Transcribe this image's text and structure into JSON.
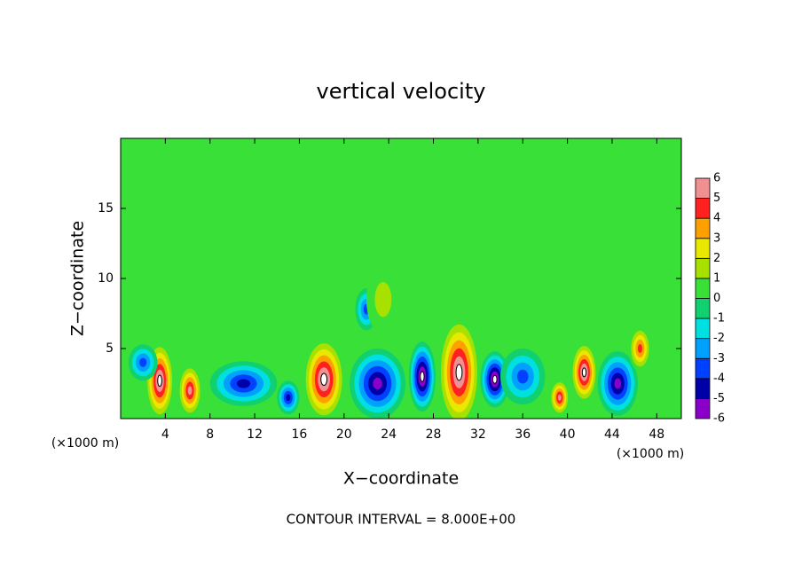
{
  "chart_data": {
    "type": "contour",
    "title": "vertical velocity",
    "x_label": "X−coordinate",
    "y_label": "Z−coordinate",
    "x_unit": "(×1000 m)",
    "footer": "CONTOUR INTERVAL = 8.000E+00",
    "xlim": [
      0,
      50.2
    ],
    "ylim": [
      0,
      20
    ],
    "xticks": [
      4,
      8,
      12,
      16,
      20,
      24,
      28,
      32,
      36,
      40,
      44,
      48
    ],
    "yticks": [
      5,
      10,
      15
    ],
    "colorbar": {
      "levels": [
        -6,
        -5,
        -4,
        -3,
        -2,
        -1,
        0,
        1,
        2,
        3,
        4,
        5,
        6
      ],
      "colors": [
        "#8a00c8",
        "#0000a8",
        "#0040ff",
        "#00a0ff",
        "#00e0e0",
        "#10d070",
        "#38e038",
        "#a8e000",
        "#e8e800",
        "#ffa000",
        "#ff2020",
        "#f09090"
      ]
    },
    "background_value": 0.5,
    "field": [
      {
        "x": 3.5,
        "z": 2.7,
        "rx": 1.3,
        "rz": 2.8,
        "value": 6
      },
      {
        "x": 6.2,
        "z": 2.0,
        "rx": 1.1,
        "rz": 1.9,
        "value": 5
      },
      {
        "x": 2.0,
        "z": 4.0,
        "rx": 1.3,
        "rz": 1.3,
        "value": -3
      },
      {
        "x": 11.0,
        "z": 2.5,
        "rx": 3.0,
        "rz": 1.6,
        "value": -4
      },
      {
        "x": 15.0,
        "z": 1.5,
        "rx": 1.0,
        "rz": 1.2,
        "value": -4
      },
      {
        "x": 18.2,
        "z": 2.8,
        "rx": 1.9,
        "rz": 3.0,
        "value": 6
      },
      {
        "x": 23.0,
        "z": 2.5,
        "rx": 2.5,
        "rz": 2.5,
        "value": -5
      },
      {
        "x": 22.0,
        "z": 7.8,
        "rx": 1.0,
        "rz": 1.5,
        "value": -3
      },
      {
        "x": 23.5,
        "z": 8.5,
        "rx": 1.5,
        "rz": 2.5,
        "value": 1
      },
      {
        "x": 27.0,
        "z": 3.0,
        "rx": 1.2,
        "rz": 2.5,
        "value": -6
      },
      {
        "x": 30.3,
        "z": 3.3,
        "rx": 1.9,
        "rz": 4.0,
        "value": 6
      },
      {
        "x": 33.5,
        "z": 2.8,
        "rx": 1.3,
        "rz": 2.0,
        "value": -6
      },
      {
        "x": 36.0,
        "z": 3.0,
        "rx": 2.0,
        "rz": 2.0,
        "value": -3
      },
      {
        "x": 39.3,
        "z": 1.5,
        "rx": 0.9,
        "rz": 1.3,
        "value": 5
      },
      {
        "x": 41.5,
        "z": 3.3,
        "rx": 1.2,
        "rz": 2.2,
        "value": 6
      },
      {
        "x": 44.5,
        "z": 2.5,
        "rx": 1.8,
        "rz": 2.3,
        "value": -5
      },
      {
        "x": 46.5,
        "z": 5.0,
        "rx": 1.0,
        "rz": 1.6,
        "value": 4
      }
    ]
  }
}
